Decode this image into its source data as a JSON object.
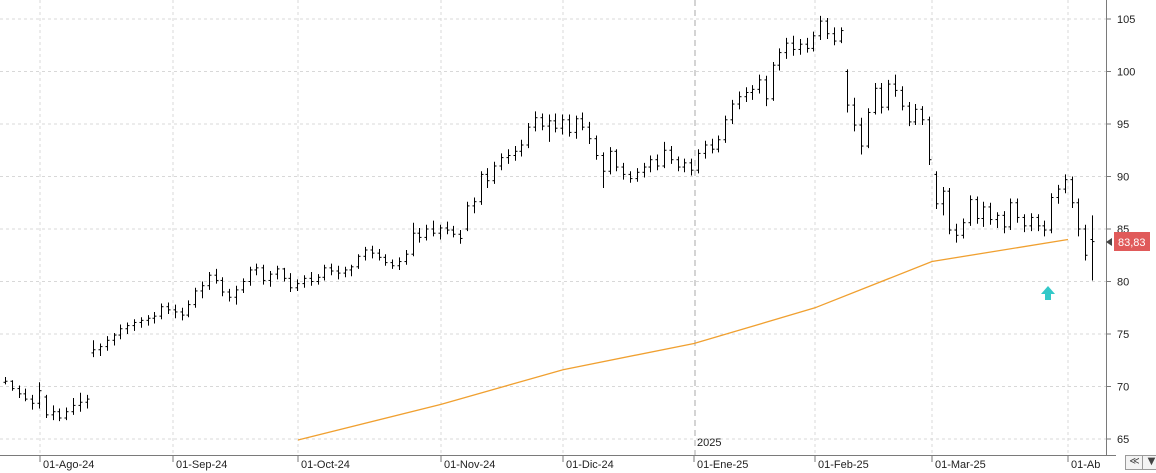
{
  "chart_data": {
    "type": "ohlc",
    "x_tick_labels": [
      "01-Ago-24",
      "01-Sep-24",
      "01-Oct-24",
      "01-Nov-24",
      "01-Dic-24",
      "01-Ene-25",
      "01-Feb-25",
      "01-Mar-25",
      "01-Ab"
    ],
    "year_marker": "2025",
    "y_tick_labels": [
      "105",
      "100",
      "95",
      "90",
      "85",
      "80",
      "75",
      "70",
      "65"
    ],
    "ylim": [
      64,
      106
    ],
    "grid": true,
    "last_price_label": "83,83",
    "last_price": 83.83,
    "colors": {
      "bars": "#000000",
      "moving_average": "#f0a030",
      "price_tag": "#e05a5a",
      "marker_arrow": "#33c9c9",
      "grid": "#d8d8d8"
    },
    "ohlc": [
      [
        70.4,
        70.9,
        70.2,
        70.5
      ],
      [
        70.5,
        70.6,
        69.6,
        69.8
      ],
      [
        69.8,
        70.1,
        68.9,
        69.3
      ],
      [
        69.3,
        69.8,
        68.6,
        68.8
      ],
      [
        68.8,
        69.2,
        67.8,
        68.4
      ],
      [
        68.4,
        70.4,
        67.9,
        69.6
      ],
      [
        69.0,
        69.2,
        67.0,
        67.3
      ],
      [
        67.3,
        68.2,
        66.8,
        67.6
      ],
      [
        67.6,
        67.9,
        66.7,
        67.0
      ],
      [
        67.0,
        68.0,
        66.8,
        67.6
      ],
      [
        67.6,
        68.9,
        67.3,
        68.2
      ],
      [
        68.2,
        69.4,
        67.6,
        68.5
      ],
      [
        68.5,
        69.2,
        67.9,
        68.8
      ],
      [
        73.2,
        74.4,
        72.8,
        73.5
      ],
      [
        73.5,
        74.1,
        72.9,
        73.8
      ],
      [
        73.8,
        74.8,
        73.4,
        74.4
      ],
      [
        74.4,
        75.1,
        73.9,
        74.9
      ],
      [
        74.9,
        75.9,
        74.5,
        75.5
      ],
      [
        75.5,
        76.1,
        75.0,
        75.8
      ],
      [
        75.8,
        76.4,
        75.3,
        76.1
      ],
      [
        76.1,
        76.6,
        75.6,
        76.3
      ],
      [
        76.3,
        76.8,
        75.8,
        76.5
      ],
      [
        76.5,
        77.1,
        76.0,
        76.7
      ],
      [
        76.7,
        77.9,
        76.4,
        77.6
      ],
      [
        77.6,
        78.0,
        76.9,
        77.3
      ],
      [
        77.3,
        77.8,
        76.5,
        77.1
      ],
      [
        77.1,
        77.5,
        76.3,
        76.8
      ],
      [
        76.8,
        78.2,
        76.6,
        77.8
      ],
      [
        77.8,
        79.4,
        77.5,
        79.1
      ],
      [
        79.1,
        80.0,
        78.4,
        79.6
      ],
      [
        79.6,
        80.9,
        79.2,
        80.6
      ],
      [
        80.6,
        81.2,
        79.8,
        80.1
      ],
      [
        80.1,
        80.4,
        78.6,
        79.0
      ],
      [
        79.0,
        79.3,
        78.1,
        78.5
      ],
      [
        78.5,
        79.6,
        77.8,
        79.2
      ],
      [
        79.2,
        80.3,
        78.9,
        80.0
      ],
      [
        80.0,
        81.4,
        79.6,
        81.1
      ],
      [
        81.1,
        81.7,
        80.6,
        81.3
      ],
      [
        81.3,
        81.6,
        79.7,
        80.1
      ],
      [
        80.1,
        81.0,
        79.5,
        80.7
      ],
      [
        80.7,
        81.5,
        80.2,
        81.2
      ],
      [
        81.2,
        81.3,
        80.0,
        80.3
      ],
      [
        80.3,
        80.8,
        79.0,
        79.4
      ],
      [
        79.4,
        80.2,
        79.1,
        79.8
      ],
      [
        79.8,
        80.6,
        79.4,
        80.3
      ],
      [
        80.3,
        80.9,
        79.6,
        80.0
      ],
      [
        80.0,
        80.7,
        79.7,
        80.4
      ],
      [
        80.4,
        81.6,
        80.1,
        81.3
      ],
      [
        81.3,
        81.7,
        80.6,
        81.0
      ],
      [
        81.0,
        81.5,
        80.2,
        80.8
      ],
      [
        80.8,
        81.4,
        80.4,
        81.1
      ],
      [
        81.1,
        81.6,
        80.5,
        81.4
      ],
      [
        81.4,
        82.6,
        81.2,
        82.4
      ],
      [
        82.4,
        83.3,
        82.0,
        83.0
      ],
      [
        83.0,
        83.4,
        82.2,
        82.7
      ],
      [
        82.7,
        83.1,
        82.0,
        82.3
      ],
      [
        82.3,
        82.6,
        81.5,
        81.8
      ],
      [
        81.8,
        82.1,
        81.2,
        81.5
      ],
      [
        81.5,
        82.3,
        81.1,
        81.9
      ],
      [
        81.9,
        83.0,
        81.6,
        82.6
      ],
      [
        82.6,
        85.6,
        82.4,
        84.6
      ],
      [
        84.6,
        85.1,
        83.7,
        84.2
      ],
      [
        84.2,
        85.4,
        83.9,
        85.0
      ],
      [
        85.0,
        85.8,
        84.3,
        84.6
      ],
      [
        84.6,
        85.4,
        84.0,
        85.1
      ],
      [
        85.1,
        85.7,
        84.5,
        84.9
      ],
      [
        84.9,
        85.3,
        84.2,
        84.5
      ],
      [
        84.5,
        84.9,
        83.6,
        84.1
      ],
      [
        85.0,
        87.6,
        84.8,
        87.2
      ],
      [
        87.2,
        88.0,
        86.5,
        87.6
      ],
      [
        87.6,
        90.5,
        87.3,
        90.2
      ],
      [
        90.2,
        90.8,
        88.9,
        89.6
      ],
      [
        89.6,
        91.4,
        89.3,
        91.0
      ],
      [
        91.0,
        92.2,
        90.6,
        91.8
      ],
      [
        91.8,
        92.6,
        91.2,
        92.0
      ],
      [
        92.0,
        92.9,
        91.5,
        92.4
      ],
      [
        92.4,
        93.5,
        91.9,
        93.0
      ],
      [
        93.0,
        95.1,
        92.7,
        94.7
      ],
      [
        94.7,
        96.2,
        94.3,
        95.6
      ],
      [
        95.6,
        96.0,
        94.4,
        94.8
      ],
      [
        94.8,
        95.9,
        93.3,
        95.3
      ],
      [
        95.3,
        96.0,
        94.2,
        94.6
      ],
      [
        94.6,
        95.9,
        94.0,
        95.4
      ],
      [
        95.4,
        95.9,
        93.8,
        94.2
      ],
      [
        94.2,
        95.8,
        93.6,
        95.5
      ],
      [
        95.5,
        96.1,
        94.4,
        94.7
      ],
      [
        94.7,
        95.2,
        93.1,
        93.6
      ],
      [
        93.6,
        93.9,
        91.6,
        92.0
      ],
      [
        92.0,
        92.3,
        88.9,
        90.5
      ],
      [
        90.5,
        92.8,
        90.2,
        92.4
      ],
      [
        92.4,
        92.6,
        90.5,
        90.9
      ],
      [
        90.9,
        91.3,
        89.7,
        90.2
      ],
      [
        90.2,
        90.5,
        89.4,
        89.8
      ],
      [
        89.8,
        90.8,
        89.5,
        90.4
      ],
      [
        90.4,
        91.3,
        89.9,
        90.9
      ],
      [
        90.9,
        92.0,
        90.4,
        91.6
      ],
      [
        91.6,
        92.1,
        90.6,
        91.0
      ],
      [
        91.0,
        93.3,
        90.8,
        92.5
      ],
      [
        92.5,
        92.9,
        91.2,
        91.6
      ],
      [
        91.6,
        91.9,
        90.5,
        90.9
      ],
      [
        90.9,
        91.7,
        90.4,
        91.3
      ],
      [
        91.3,
        91.7,
        90.1,
        90.6
      ],
      [
        90.6,
        92.6,
        90.3,
        92.2
      ],
      [
        92.2,
        93.4,
        91.7,
        93.0
      ],
      [
        93.0,
        93.6,
        92.2,
        92.6
      ],
      [
        92.6,
        93.9,
        92.3,
        93.5
      ],
      [
        93.5,
        95.8,
        93.2,
        95.4
      ],
      [
        95.4,
        97.3,
        95.0,
        96.9
      ],
      [
        96.9,
        98.1,
        96.4,
        97.6
      ],
      [
        97.6,
        98.5,
        97.1,
        98.0
      ],
      [
        98.0,
        98.7,
        97.3,
        98.3
      ],
      [
        98.3,
        99.7,
        97.9,
        99.2
      ],
      [
        99.2,
        99.6,
        96.7,
        97.4
      ],
      [
        97.4,
        100.9,
        97.2,
        100.6
      ],
      [
        100.6,
        102.2,
        100.1,
        101.8
      ],
      [
        101.8,
        103.2,
        101.2,
        102.7
      ],
      [
        102.7,
        103.4,
        101.5,
        102.1
      ],
      [
        102.1,
        103.1,
        101.6,
        102.6
      ],
      [
        102.6,
        103.2,
        101.8,
        102.2
      ],
      [
        102.2,
        103.8,
        101.9,
        103.4
      ],
      [
        103.4,
        105.3,
        103.0,
        104.8
      ],
      [
        104.8,
        105.1,
        103.1,
        103.6
      ],
      [
        103.6,
        104.2,
        102.5,
        102.9
      ],
      [
        102.9,
        104.2,
        102.7,
        103.9
      ],
      [
        100.0,
        100.2,
        96.1,
        96.8
      ],
      [
        96.8,
        97.5,
        94.3,
        94.9
      ],
      [
        94.9,
        95.6,
        92.1,
        92.9
      ],
      [
        92.9,
        96.5,
        92.7,
        96.1
      ],
      [
        96.1,
        98.9,
        95.9,
        98.4
      ],
      [
        98.4,
        98.9,
        96.0,
        96.6
      ],
      [
        96.6,
        99.2,
        96.3,
        98.8
      ],
      [
        98.8,
        99.7,
        97.6,
        98.2
      ],
      [
        98.2,
        98.6,
        96.3,
        96.7
      ],
      [
        96.7,
        97.1,
        94.8,
        95.2
      ],
      [
        95.2,
        96.9,
        94.9,
        96.4
      ],
      [
        96.4,
        96.7,
        94.9,
        95.4
      ],
      [
        95.4,
        95.7,
        91.1,
        91.6
      ],
      [
        90.2,
        90.5,
        86.9,
        87.4
      ],
      [
        87.4,
        89.0,
        86.3,
        88.6
      ],
      [
        88.6,
        88.9,
        84.5,
        84.9
      ],
      [
        84.9,
        85.5,
        83.7,
        84.4
      ],
      [
        84.4,
        86.0,
        84.1,
        85.6
      ],
      [
        85.6,
        88.2,
        85.3,
        87.8
      ],
      [
        87.8,
        88.1,
        85.5,
        86.0
      ],
      [
        86.0,
        87.6,
        85.2,
        87.1
      ],
      [
        87.1,
        87.5,
        85.4,
        85.9
      ],
      [
        85.9,
        86.6,
        85.1,
        86.3
      ],
      [
        86.3,
        86.7,
        84.6,
        85.2
      ],
      [
        85.2,
        87.9,
        84.9,
        87.5
      ],
      [
        87.5,
        87.9,
        85.6,
        86.1
      ],
      [
        86.1,
        86.4,
        84.7,
        85.3
      ],
      [
        85.3,
        86.5,
        84.8,
        86.1
      ],
      [
        86.1,
        86.4,
        84.8,
        85.3
      ],
      [
        85.3,
        85.8,
        84.3,
        84.9
      ],
      [
        84.9,
        88.4,
        84.6,
        88.0
      ],
      [
        88.0,
        89.2,
        87.4,
        88.8
      ],
      [
        88.8,
        90.2,
        88.4,
        89.7
      ],
      [
        89.7,
        90.0,
        87.0,
        87.5
      ],
      [
        87.5,
        87.9,
        84.3,
        85.0
      ],
      [
        85.0,
        85.4,
        82.0,
        82.5
      ],
      [
        84.0,
        86.3,
        80.1,
        83.8
      ]
    ],
    "moving_average": [
      [
        "01-Oct-24",
        64.9
      ],
      [
        "01-Nov-24",
        68.3
      ],
      [
        "01-Dic-24",
        71.6
      ],
      [
        "01-Ene-25",
        74.1
      ],
      [
        "01-Feb-25",
        77.5
      ],
      [
        "01-Mar-25",
        81.9
      ],
      [
        "01-Ab",
        84.0
      ]
    ]
  }
}
